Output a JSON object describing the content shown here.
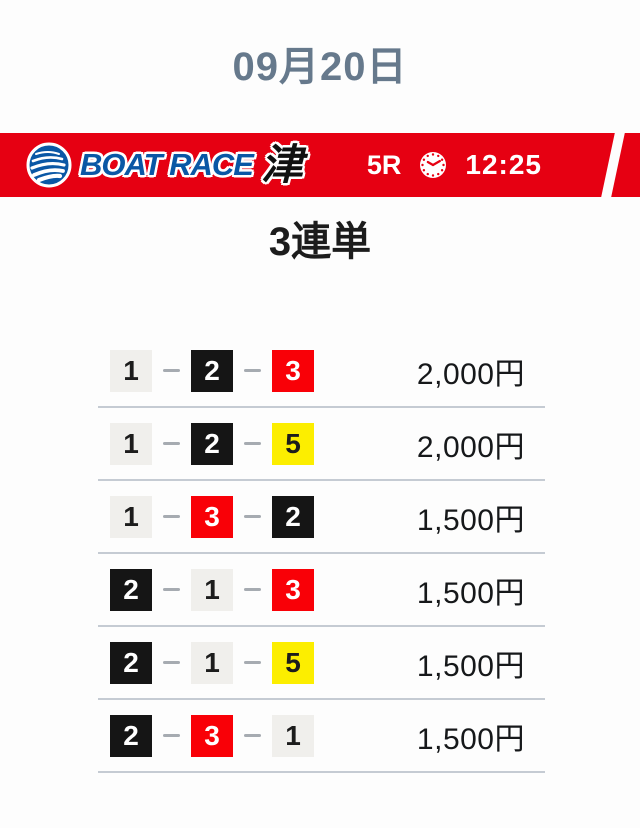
{
  "header": {
    "date": "09月20日",
    "color": "#66798c"
  },
  "banner": {
    "brand": "BOAT RACE",
    "venue": "津",
    "race_number": "5R",
    "deadline_time": "12:25",
    "icons": {
      "logo": "boatrace-swirl-icon",
      "clock": "clock-icon"
    },
    "colors": {
      "background": "#e60012",
      "brand_blue": "#0a57a5",
      "text": "#ffffff"
    }
  },
  "bet_type_title": "3連単",
  "boat_colors": {
    "1": {
      "bg": "#f0efec",
      "fg": "#1c1c1c"
    },
    "2": {
      "bg": "#151515",
      "fg": "#ffffff"
    },
    "3": {
      "bg": "#f90007",
      "fg": "#ffffff"
    },
    "5": {
      "bg": "#fcee00",
      "fg": "#1c1c1c"
    }
  },
  "bets": [
    {
      "combination": [
        "1",
        "2",
        "3"
      ],
      "amount": "2,000円"
    },
    {
      "combination": [
        "1",
        "2",
        "5"
      ],
      "amount": "2,000円"
    },
    {
      "combination": [
        "1",
        "3",
        "2"
      ],
      "amount": "1,500円"
    },
    {
      "combination": [
        "2",
        "1",
        "3"
      ],
      "amount": "1,500円"
    },
    {
      "combination": [
        "2",
        "1",
        "5"
      ],
      "amount": "1,500円"
    },
    {
      "combination": [
        "2",
        "3",
        "1"
      ],
      "amount": "1,500円"
    }
  ]
}
